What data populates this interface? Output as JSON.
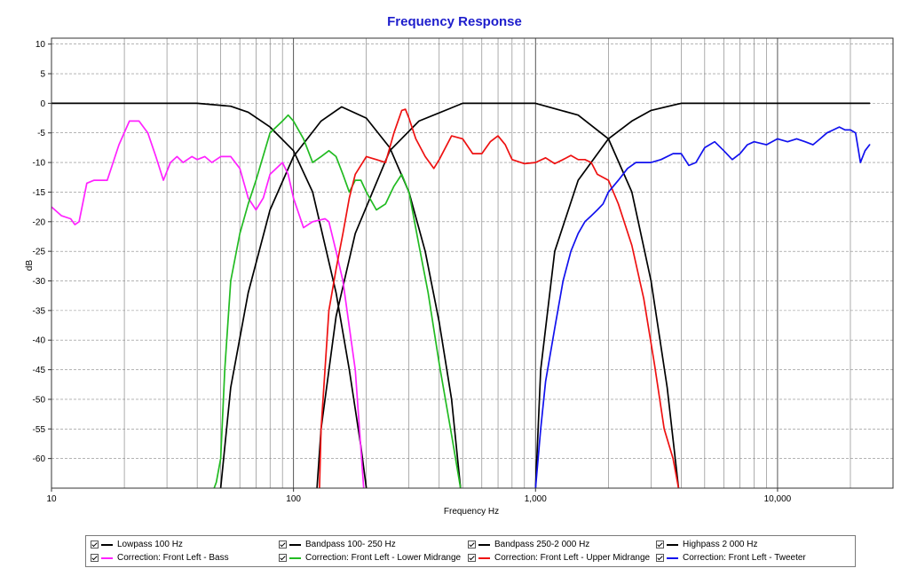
{
  "chart_data": {
    "type": "line",
    "title": "Frequency Response",
    "xlabel": "Frequency Hz",
    "ylabel": "dB",
    "x_scale": "log",
    "xlim": [
      10,
      30000
    ],
    "ylim": [
      -65,
      11
    ],
    "x_ticks": [
      10,
      100,
      1000,
      10000
    ],
    "x_tick_labels": [
      "10",
      "100",
      "1,000",
      "10,000"
    ],
    "y_ticks": [
      10,
      5,
      0,
      -5,
      -10,
      -15,
      -20,
      -25,
      -30,
      -35,
      -40,
      -45,
      -50,
      -55,
      -60
    ],
    "y_tick_labels": [
      "10",
      "5",
      "0",
      "-5",
      "-10",
      "-15",
      "-20",
      "-25",
      "-30",
      "-35",
      "-40",
      "-45",
      "-50",
      "-55",
      "-60"
    ],
    "grid": true,
    "legend_position": "bottom",
    "series": [
      {
        "name": "Lowpass  100 Hz",
        "color": "#000000",
        "checked": true,
        "x": [
          10,
          40,
          55,
          65,
          80,
          100,
          120,
          150,
          170,
          190,
          200
        ],
        "y": [
          0,
          0,
          -0.5,
          -1.5,
          -4,
          -8,
          -15,
          -32,
          -45,
          -58,
          -65
        ]
      },
      {
        "name": "Bandpass  100- 250 Hz",
        "color": "#000000",
        "checked": true,
        "x": [
          50,
          55,
          65,
          80,
          100,
          130,
          158,
          200,
          250,
          300,
          350,
          400,
          450,
          490
        ],
        "y": [
          -65,
          -48,
          -32,
          -18,
          -9,
          -3,
          -0.6,
          -2.5,
          -7.5,
          -15,
          -25,
          -37,
          -50,
          -65
        ]
      },
      {
        "name": "Bandpass  250-2 000 Hz",
        "color": "#000000",
        "checked": true,
        "x": [
          125,
          130,
          150,
          180,
          250,
          330,
          500,
          1000,
          1500,
          2000,
          2500,
          3000,
          3500,
          3900
        ],
        "y": [
          -65,
          -55,
          -36,
          -22,
          -8,
          -3,
          0,
          0,
          -2,
          -6,
          -15,
          -30,
          -48,
          -65
        ]
      },
      {
        "name": "Highpass  2 000 Hz",
        "color": "#000000",
        "checked": true,
        "x": [
          1000,
          1050,
          1200,
          1500,
          2000,
          2500,
          3000,
          4000,
          6000,
          10000,
          15000,
          24000
        ],
        "y": [
          -65,
          -45,
          -25,
          -13,
          -6,
          -3,
          -1.2,
          0,
          0,
          0,
          0,
          0
        ]
      },
      {
        "name": "Correction: Front Left - Bass",
        "color": "#ff22ff",
        "checked": true,
        "x": [
          10,
          11,
          12,
          12.5,
          13,
          14,
          15,
          17,
          19,
          21,
          23,
          25,
          27,
          29,
          31,
          33,
          35,
          38,
          40,
          43,
          46,
          50,
          55,
          60,
          65,
          70,
          75,
          80,
          90,
          95,
          100,
          110,
          120,
          135,
          140,
          150,
          160,
          180,
          195
        ],
        "y": [
          -17.5,
          -19,
          -19.5,
          -20.5,
          -20,
          -13.5,
          -13,
          -13,
          -7,
          -3,
          -3,
          -5,
          -9,
          -13,
          -10,
          -9,
          -10,
          -9,
          -9.5,
          -9,
          -10,
          -9,
          -9,
          -11,
          -16,
          -18,
          -16,
          -12,
          -10,
          -12,
          -16,
          -21,
          -20,
          -19.5,
          -20,
          -25,
          -30,
          -45,
          -65
        ]
      },
      {
        "name": "Correction: Front Left - Lower Midrange",
        "color": "#22bb22",
        "checked": true,
        "x": [
          47,
          48,
          50,
          52,
          55,
          60,
          65,
          70,
          80,
          90,
          95,
          100,
          110,
          120,
          130,
          140,
          150,
          160,
          170,
          180,
          190,
          200,
          220,
          240,
          260,
          280,
          300,
          330,
          360,
          400,
          450,
          490
        ],
        "y": [
          -65,
          -64,
          -60,
          -45,
          -30,
          -22,
          -17,
          -13,
          -5,
          -3,
          -2,
          -3,
          -6,
          -10,
          -9,
          -8,
          -9,
          -12,
          -15,
          -13,
          -13,
          -15,
          -18,
          -17,
          -14,
          -12,
          -15,
          -24,
          -32,
          -44,
          -56,
          -65
        ]
      },
      {
        "name": "Correction: Front Left - Upper Midrange",
        "color": "#ee1111",
        "checked": true,
        "x": [
          128,
          130,
          140,
          150,
          160,
          170,
          180,
          200,
          220,
          240,
          260,
          280,
          290,
          300,
          320,
          350,
          380,
          400,
          450,
          500,
          550,
          600,
          650,
          700,
          750,
          800,
          900,
          1000,
          1100,
          1200,
          1300,
          1400,
          1500,
          1600,
          1700,
          1800,
          2000,
          2200,
          2500,
          2800,
          3100,
          3400,
          3700,
          3900
        ],
        "y": [
          -65,
          -55,
          -35,
          -28,
          -22,
          -16,
          -12,
          -9,
          -9.5,
          -10,
          -5,
          -1.2,
          -1,
          -2.5,
          -6,
          -9,
          -11,
          -9.5,
          -5.5,
          -6,
          -8.5,
          -8.5,
          -6.5,
          -5.5,
          -7,
          -9.5,
          -10.2,
          -10,
          -9.2,
          -10.2,
          -9.5,
          -8.8,
          -9.5,
          -9.5,
          -10,
          -12,
          -13,
          -17,
          -24,
          -33,
          -44,
          -55,
          -60,
          -65
        ]
      },
      {
        "name": "Correction: Front Left - Tweeter",
        "color": "#1111ee",
        "checked": true,
        "x": [
          1000,
          1050,
          1100,
          1200,
          1300,
          1400,
          1500,
          1600,
          1700,
          1800,
          1900,
          2000,
          2200,
          2400,
          2600,
          2800,
          3000,
          3300,
          3700,
          4000,
          4300,
          4600,
          5000,
          5500,
          6000,
          6500,
          7000,
          7500,
          8000,
          9000,
          10000,
          11000,
          12000,
          13000,
          14000,
          15000,
          16000,
          17000,
          18000,
          19000,
          20000,
          21000,
          22000,
          23000,
          24000
        ],
        "y": [
          -65,
          -55,
          -47,
          -38,
          -30,
          -25,
          -22,
          -20,
          -19,
          -18,
          -17,
          -15,
          -13,
          -11,
          -10,
          -10,
          -10,
          -9.5,
          -8.5,
          -8.5,
          -10.5,
          -10,
          -7.5,
          -6.5,
          -8,
          -9.5,
          -8.5,
          -7,
          -6.5,
          -7,
          -6,
          -6.5,
          -6,
          -6.5,
          -7,
          -6,
          -5,
          -4.5,
          -4,
          -4.5,
          -4.5,
          -5,
          -10,
          -8,
          -7
        ]
      }
    ]
  }
}
